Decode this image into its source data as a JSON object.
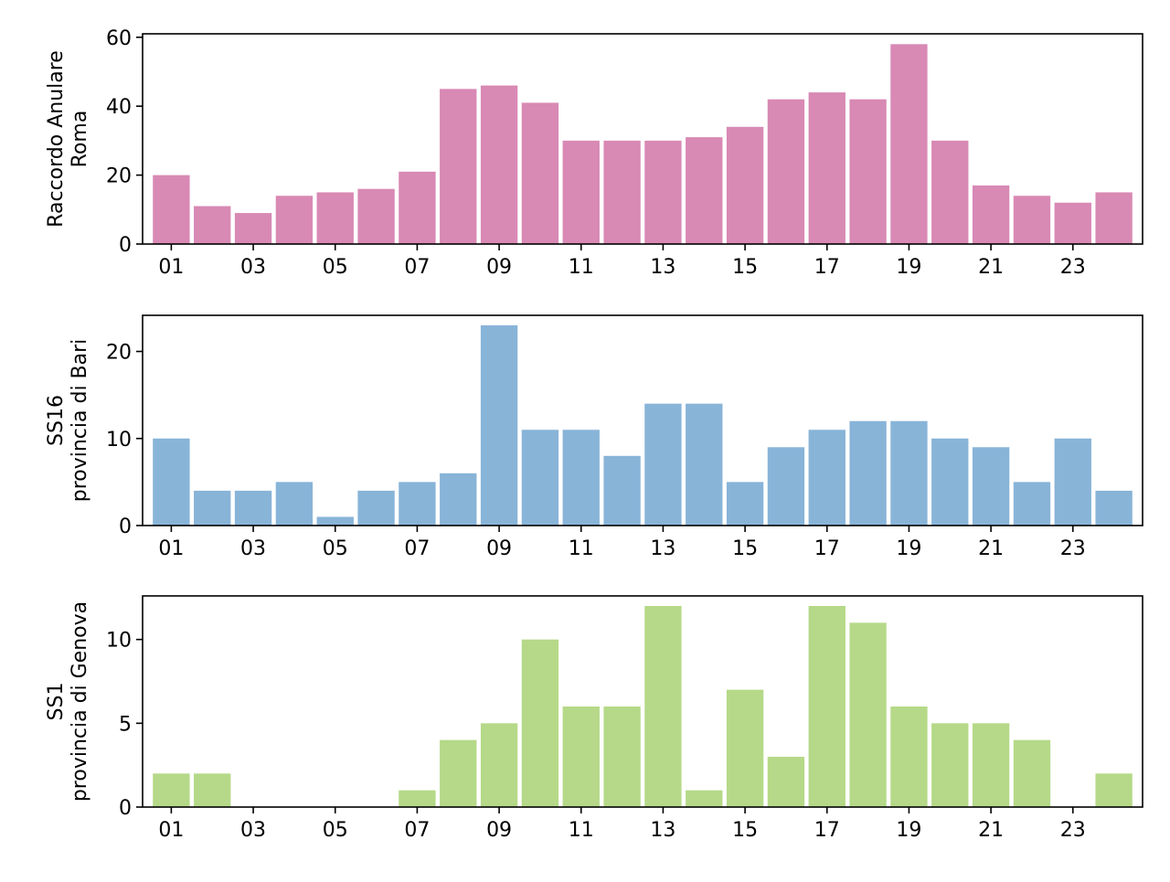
{
  "chart_data": [
    {
      "type": "bar",
      "ylabel": [
        "Raccordo Anulare",
        "Roma"
      ],
      "color": "#d889b4",
      "categories": [
        "01",
        "02",
        "03",
        "04",
        "05",
        "06",
        "07",
        "08",
        "09",
        "10",
        "11",
        "12",
        "13",
        "14",
        "15",
        "16",
        "17",
        "18",
        "19",
        "20",
        "21",
        "22",
        "23",
        "24"
      ],
      "tick_labels": [
        "01",
        "03",
        "05",
        "07",
        "09",
        "11",
        "13",
        "15",
        "17",
        "19",
        "21",
        "23"
      ],
      "values": [
        20,
        11,
        9,
        14,
        15,
        16,
        21,
        45,
        46,
        41,
        30,
        30,
        30,
        31,
        34,
        42,
        44,
        42,
        58,
        30,
        17,
        14,
        12,
        15
      ],
      "ylim": [
        0,
        61
      ],
      "yticks": [
        0,
        20,
        40,
        60
      ]
    },
    {
      "type": "bar",
      "ylabel": [
        "SS16",
        "provincia di Bari"
      ],
      "color": "#88b4d8",
      "categories": [
        "01",
        "02",
        "03",
        "04",
        "05",
        "06",
        "07",
        "08",
        "09",
        "10",
        "11",
        "12",
        "13",
        "14",
        "15",
        "16",
        "17",
        "18",
        "19",
        "20",
        "21",
        "22",
        "23",
        "24"
      ],
      "tick_labels": [
        "01",
        "03",
        "05",
        "07",
        "09",
        "11",
        "13",
        "15",
        "17",
        "19",
        "21",
        "23"
      ],
      "values": [
        10,
        4,
        4,
        5,
        1,
        4,
        5,
        6,
        23,
        11,
        11,
        8,
        14,
        14,
        5,
        9,
        11,
        12,
        12,
        10,
        9,
        5,
        10,
        4
      ],
      "ylim": [
        0,
        24.15
      ],
      "yticks": [
        0,
        10,
        20
      ]
    },
    {
      "type": "bar",
      "ylabel": [
        "SS1",
        "provincia di Genova"
      ],
      "color": "#b5d988",
      "categories": [
        "01",
        "02",
        "03",
        "04",
        "05",
        "06",
        "07",
        "08",
        "09",
        "10",
        "11",
        "12",
        "13",
        "14",
        "15",
        "16",
        "17",
        "18",
        "19",
        "20",
        "21",
        "22",
        "23",
        "24"
      ],
      "tick_labels": [
        "01",
        "03",
        "05",
        "07",
        "09",
        "11",
        "13",
        "15",
        "17",
        "19",
        "21",
        "23"
      ],
      "values": [
        2,
        2,
        0,
        0,
        0,
        0,
        1,
        4,
        5,
        10,
        6,
        6,
        12,
        1,
        7,
        3,
        12,
        11,
        6,
        5,
        5,
        4,
        0,
        2
      ],
      "ylim": [
        0,
        12.6
      ],
      "yticks": [
        0,
        5,
        10
      ]
    }
  ]
}
